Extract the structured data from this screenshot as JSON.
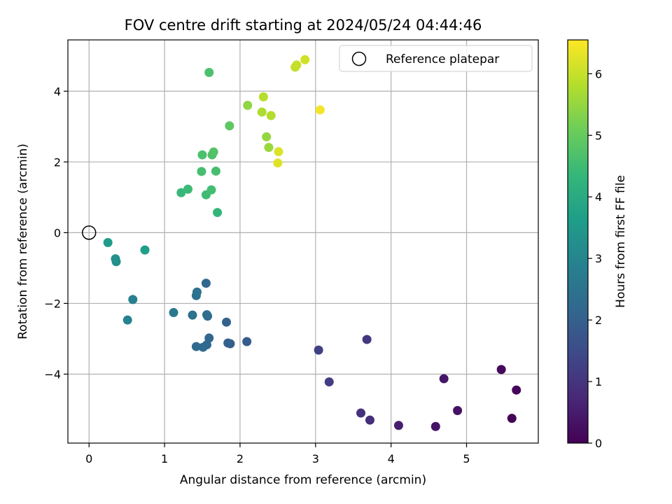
{
  "chart_data": {
    "type": "scatter",
    "title": "FOV centre drift starting at 2024/05/24 04:44:46",
    "xlabel": "Angular distance from reference (arcmin)",
    "ylabel": "Rotation from reference (arcmin)",
    "xlim": [
      -0.28,
      5.95
    ],
    "ylim": [
      -5.95,
      5.45
    ],
    "xticks": [
      0,
      1,
      2,
      3,
      4,
      5
    ],
    "yticks": [
      -4,
      -2,
      0,
      2,
      4
    ],
    "grid": true,
    "legend": {
      "placement": "upper right",
      "entries": [
        "Reference platepar"
      ]
    },
    "reference_point": {
      "x": 0,
      "y": 0,
      "label": "Reference platepar"
    },
    "colorbar": {
      "label": "Hours from first FF file",
      "colormap": "viridis",
      "range": [
        0,
        6.55
      ],
      "ticks": [
        0,
        1,
        2,
        3,
        4,
        5,
        6
      ]
    },
    "points": [
      {
        "x": 5.6,
        "y": -5.25,
        "h": 0.05
      },
      {
        "x": 5.66,
        "y": -4.45,
        "h": 0.1
      },
      {
        "x": 5.46,
        "y": -3.87,
        "h": 0.15
      },
      {
        "x": 4.88,
        "y": -5.03,
        "h": 0.3
      },
      {
        "x": 4.59,
        "y": -5.48,
        "h": 0.35
      },
      {
        "x": 4.7,
        "y": -4.13,
        "h": 0.4
      },
      {
        "x": 4.1,
        "y": -5.45,
        "h": 0.55
      },
      {
        "x": 3.72,
        "y": -5.3,
        "h": 0.85
      },
      {
        "x": 3.6,
        "y": -5.1,
        "h": 0.95
      },
      {
        "x": 3.68,
        "y": -3.02,
        "h": 1.05
      },
      {
        "x": 3.18,
        "y": -4.22,
        "h": 1.15
      },
      {
        "x": 3.04,
        "y": -3.32,
        "h": 1.25
      },
      {
        "x": 2.09,
        "y": -3.08,
        "h": 1.9
      },
      {
        "x": 1.87,
        "y": -3.14,
        "h": 1.95
      },
      {
        "x": 1.84,
        "y": -3.12,
        "h": 2.0
      },
      {
        "x": 1.82,
        "y": -2.53,
        "h": 2.05
      },
      {
        "x": 1.55,
        "y": -1.43,
        "h": 2.2
      },
      {
        "x": 1.59,
        "y": -2.98,
        "h": 2.15
      },
      {
        "x": 1.56,
        "y": -3.17,
        "h": 2.2
      },
      {
        "x": 1.51,
        "y": -3.24,
        "h": 2.25
      },
      {
        "x": 1.42,
        "y": -3.22,
        "h": 2.25
      },
      {
        "x": 1.57,
        "y": -2.36,
        "h": 2.3
      },
      {
        "x": 1.56,
        "y": -2.32,
        "h": 2.35
      },
      {
        "x": 1.42,
        "y": -1.78,
        "h": 2.4
      },
      {
        "x": 1.43,
        "y": -1.68,
        "h": 2.45
      },
      {
        "x": 1.37,
        "y": -2.33,
        "h": 2.45
      },
      {
        "x": 1.12,
        "y": -2.26,
        "h": 2.6
      },
      {
        "x": 0.58,
        "y": -1.89,
        "h": 2.85
      },
      {
        "x": 0.51,
        "y": -2.47,
        "h": 2.9
      },
      {
        "x": 0.36,
        "y": -0.82,
        "h": 3.25
      },
      {
        "x": 0.35,
        "y": -0.74,
        "h": 3.3
      },
      {
        "x": 0.25,
        "y": -0.28,
        "h": 3.55
      },
      {
        "x": 0.74,
        "y": -0.49,
        "h": 3.65
      },
      {
        "x": 1.7,
        "y": 0.57,
        "h": 4.35
      },
      {
        "x": 1.22,
        "y": 1.13,
        "h": 4.4
      },
      {
        "x": 1.31,
        "y": 1.23,
        "h": 4.45
      },
      {
        "x": 1.55,
        "y": 1.07,
        "h": 4.5
      },
      {
        "x": 1.62,
        "y": 1.21,
        "h": 4.55
      },
      {
        "x": 1.68,
        "y": 1.74,
        "h": 4.6
      },
      {
        "x": 1.49,
        "y": 1.73,
        "h": 4.6
      },
      {
        "x": 1.5,
        "y": 2.2,
        "h": 4.65
      },
      {
        "x": 1.63,
        "y": 2.2,
        "h": 4.7
      },
      {
        "x": 1.65,
        "y": 2.28,
        "h": 4.75
      },
      {
        "x": 1.59,
        "y": 4.53,
        "h": 4.65
      },
      {
        "x": 1.86,
        "y": 3.02,
        "h": 4.9
      },
      {
        "x": 2.1,
        "y": 3.6,
        "h": 5.45
      },
      {
        "x": 2.35,
        "y": 2.71,
        "h": 5.5
      },
      {
        "x": 2.38,
        "y": 2.41,
        "h": 5.55
      },
      {
        "x": 2.29,
        "y": 3.41,
        "h": 5.75
      },
      {
        "x": 2.41,
        "y": 3.31,
        "h": 5.8
      },
      {
        "x": 2.31,
        "y": 3.84,
        "h": 5.85
      },
      {
        "x": 2.73,
        "y": 4.68,
        "h": 5.95
      },
      {
        "x": 2.75,
        "y": 4.74,
        "h": 6.0
      },
      {
        "x": 2.86,
        "y": 4.89,
        "h": 6.1
      },
      {
        "x": 2.51,
        "y": 2.29,
        "h": 6.2
      },
      {
        "x": 2.5,
        "y": 1.97,
        "h": 6.25
      },
      {
        "x": 3.06,
        "y": 3.47,
        "h": 6.45
      }
    ]
  }
}
